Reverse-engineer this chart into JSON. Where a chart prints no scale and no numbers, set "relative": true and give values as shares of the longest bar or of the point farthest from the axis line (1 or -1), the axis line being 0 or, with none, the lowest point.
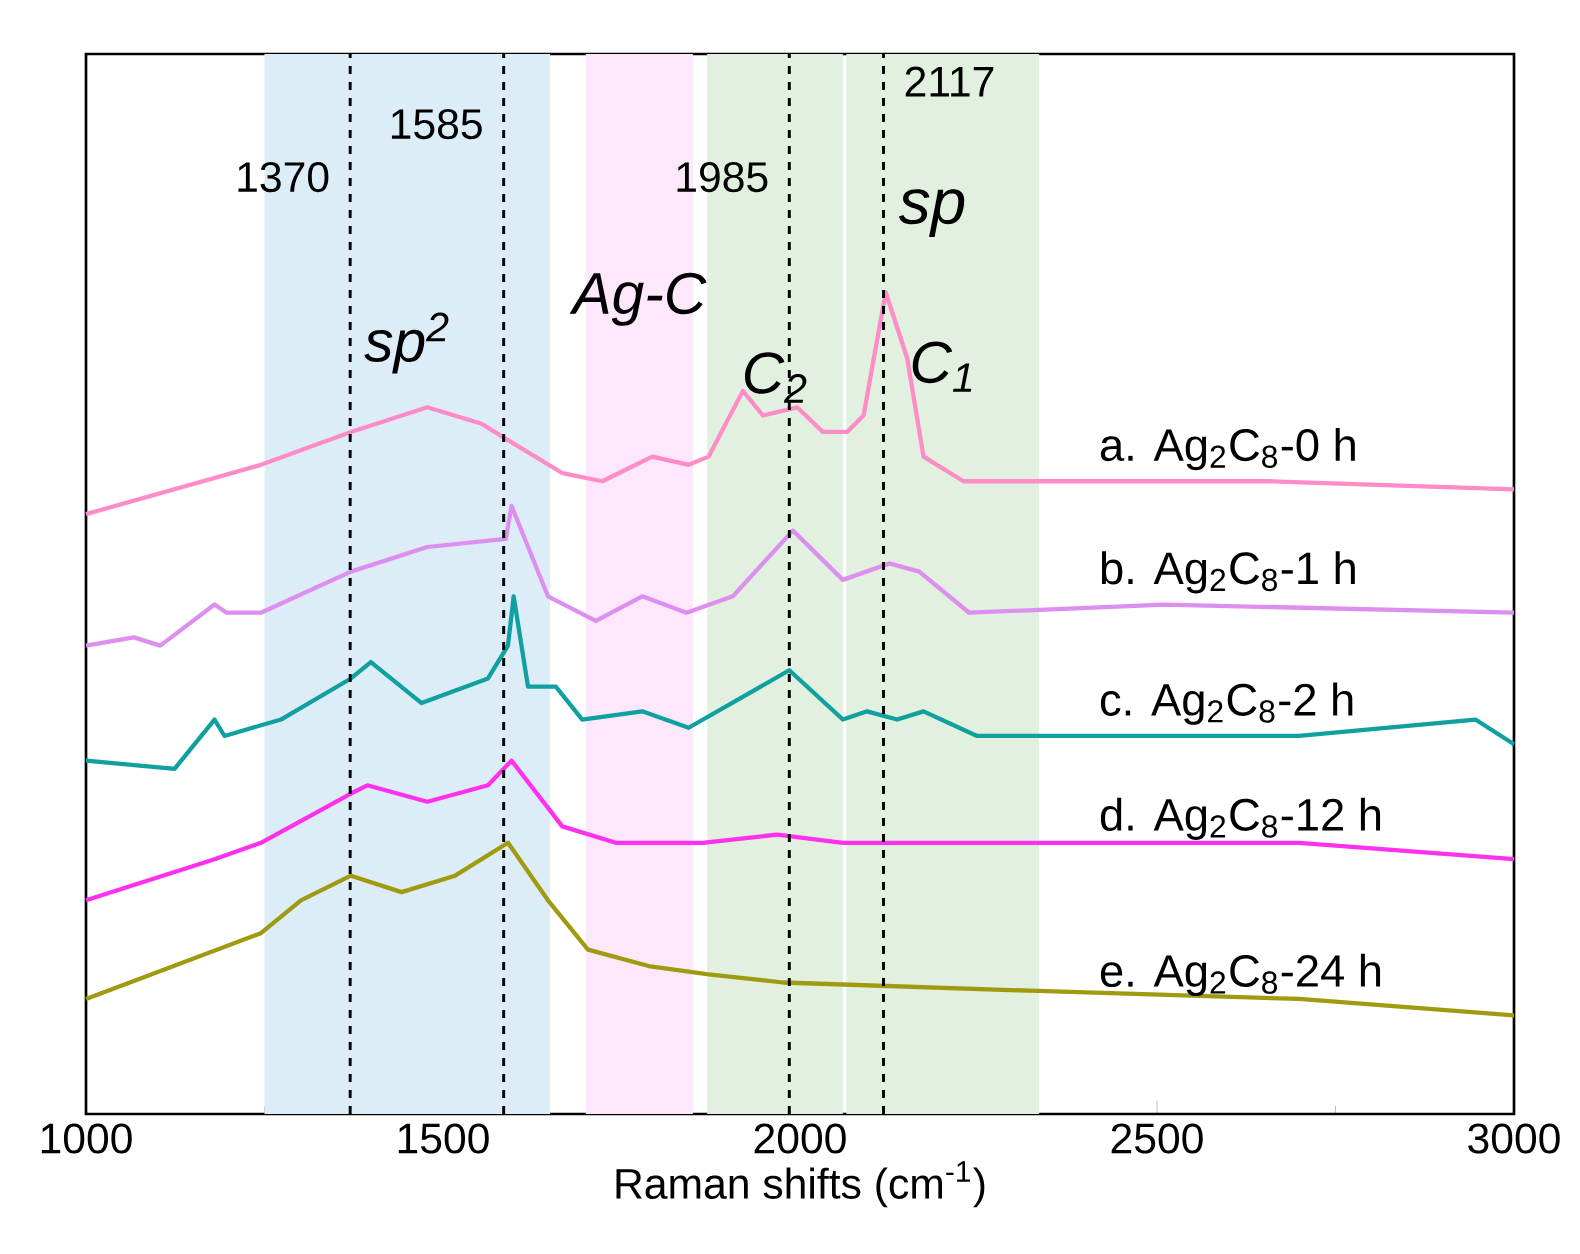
{
  "chart_data": {
    "type": "line",
    "xlabel": "Raman shifts (cm$^{-1}$)",
    "relative": true,
    "xlim": [
      1000,
      3000
    ],
    "xticks": [
      1000,
      1500,
      2000,
      2500,
      3000
    ],
    "tick_labels": "x",
    "series": [
      {
        "name": "a. Ag$_{2}$C$_{8}$-0 h",
        "color": "#ff8cc6",
        "x": [
          1000,
          1245,
          1371,
          1478,
          1554,
          1591,
          1667,
          1723,
          1793,
          1844,
          1872,
          1920,
          1948,
          1996,
          2032,
          2066,
          2089,
          2120,
          2150,
          2173,
          2229,
          2333,
          2660,
          3000
        ],
        "values": [
          0.73,
          0.79,
          0.83,
          0.86,
          0.84,
          0.82,
          0.78,
          0.77,
          0.8,
          0.79,
          0.8,
          0.88,
          0.85,
          0.86,
          0.83,
          0.83,
          0.85,
          1.0,
          0.92,
          0.8,
          0.77,
          0.77,
          0.77,
          0.76
        ]
      },
      {
        "name": "b. Ag$_{2}$C$_{8}$-1 h",
        "color": "#dd8ff0",
        "x": [
          1000,
          1067,
          1104,
          1180,
          1197,
          1245,
          1371,
          1478,
          1588,
          1596,
          1647,
          1714,
          1779,
          1841,
          1906,
          1990,
          2060,
          2125,
          2167,
          2237,
          2510,
          3000
        ],
        "values": [
          0.57,
          0.58,
          0.57,
          0.62,
          0.61,
          0.61,
          0.66,
          0.69,
          0.7,
          0.74,
          0.63,
          0.6,
          0.63,
          0.61,
          0.63,
          0.71,
          0.65,
          0.67,
          0.66,
          0.61,
          0.62,
          0.61
        ]
      },
      {
        "name": "c. Ag$_{2}$C$_{8}$-2 h",
        "color": "#10a0a0",
        "x": [
          1000,
          1124,
          1180,
          1194,
          1273,
          1371,
          1399,
          1470,
          1563,
          1591,
          1599,
          1619,
          1658,
          1695,
          1779,
          1844,
          1985,
          2060,
          2094,
          2136,
          2173,
          2248,
          2699,
          2946,
          3000
        ],
        "values": [
          0.43,
          0.42,
          0.48,
          0.46,
          0.48,
          0.53,
          0.55,
          0.5,
          0.53,
          0.57,
          0.63,
          0.52,
          0.52,
          0.48,
          0.49,
          0.47,
          0.54,
          0.48,
          0.49,
          0.48,
          0.49,
          0.46,
          0.46,
          0.48,
          0.45
        ]
      },
      {
        "name": "d. Ag$_{2}$C$_{8}$-12 h",
        "color": "#ff30ee",
        "x": [
          1000,
          1180,
          1245,
          1371,
          1394,
          1478,
          1563,
          1596,
          1667,
          1742,
          1864,
          1968,
          2060,
          2322,
          2699,
          3000
        ],
        "values": [
          0.26,
          0.31,
          0.33,
          0.39,
          0.4,
          0.38,
          0.4,
          0.43,
          0.35,
          0.33,
          0.33,
          0.34,
          0.33,
          0.33,
          0.33,
          0.31
        ]
      },
      {
        "name": "e. Ag$_{2}$C$_{8}$-24 h",
        "color": "#a09a10",
        "x": [
          1000,
          1245,
          1301,
          1371,
          1442,
          1517,
          1591,
          1647,
          1703,
          1788,
          1872,
          1976,
          2322,
          2699,
          3000
        ],
        "values": [
          0.14,
          0.22,
          0.26,
          0.29,
          0.27,
          0.29,
          0.33,
          0.26,
          0.2,
          0.18,
          0.17,
          0.16,
          0.15,
          0.14,
          0.12
        ]
      }
    ],
    "ref_lines": [
      {
        "axis": "x",
        "value": 1370,
        "label": "1370",
        "line_style": "dashed"
      },
      {
        "axis": "x",
        "value": 1585,
        "label": "1585",
        "line_style": "dashed"
      },
      {
        "axis": "x",
        "value": 1985,
        "label": "1985",
        "line_style": "dashed"
      },
      {
        "axis": "x",
        "value": 2117,
        "label": "2117",
        "line_style": "dashed"
      }
    ],
    "bands": [
      {
        "axis": "x",
        "from": 1250,
        "to": 1650,
        "label": "sp$^{2}$",
        "color": "#dcedf8"
      },
      {
        "axis": "x",
        "from": 1700,
        "to": 1850,
        "label": "Ag-C",
        "color": "#fde7fb"
      },
      {
        "axis": "x",
        "from": 1870,
        "to": 2060,
        "label": "C$_{2}$",
        "color": "#e1f0df"
      },
      {
        "axis": "x",
        "from": 2065,
        "to": 2335,
        "label": "C$_{1}$",
        "color": "#e1f0df"
      }
    ],
    "annotations": [
      "sp"
    ]
  }
}
